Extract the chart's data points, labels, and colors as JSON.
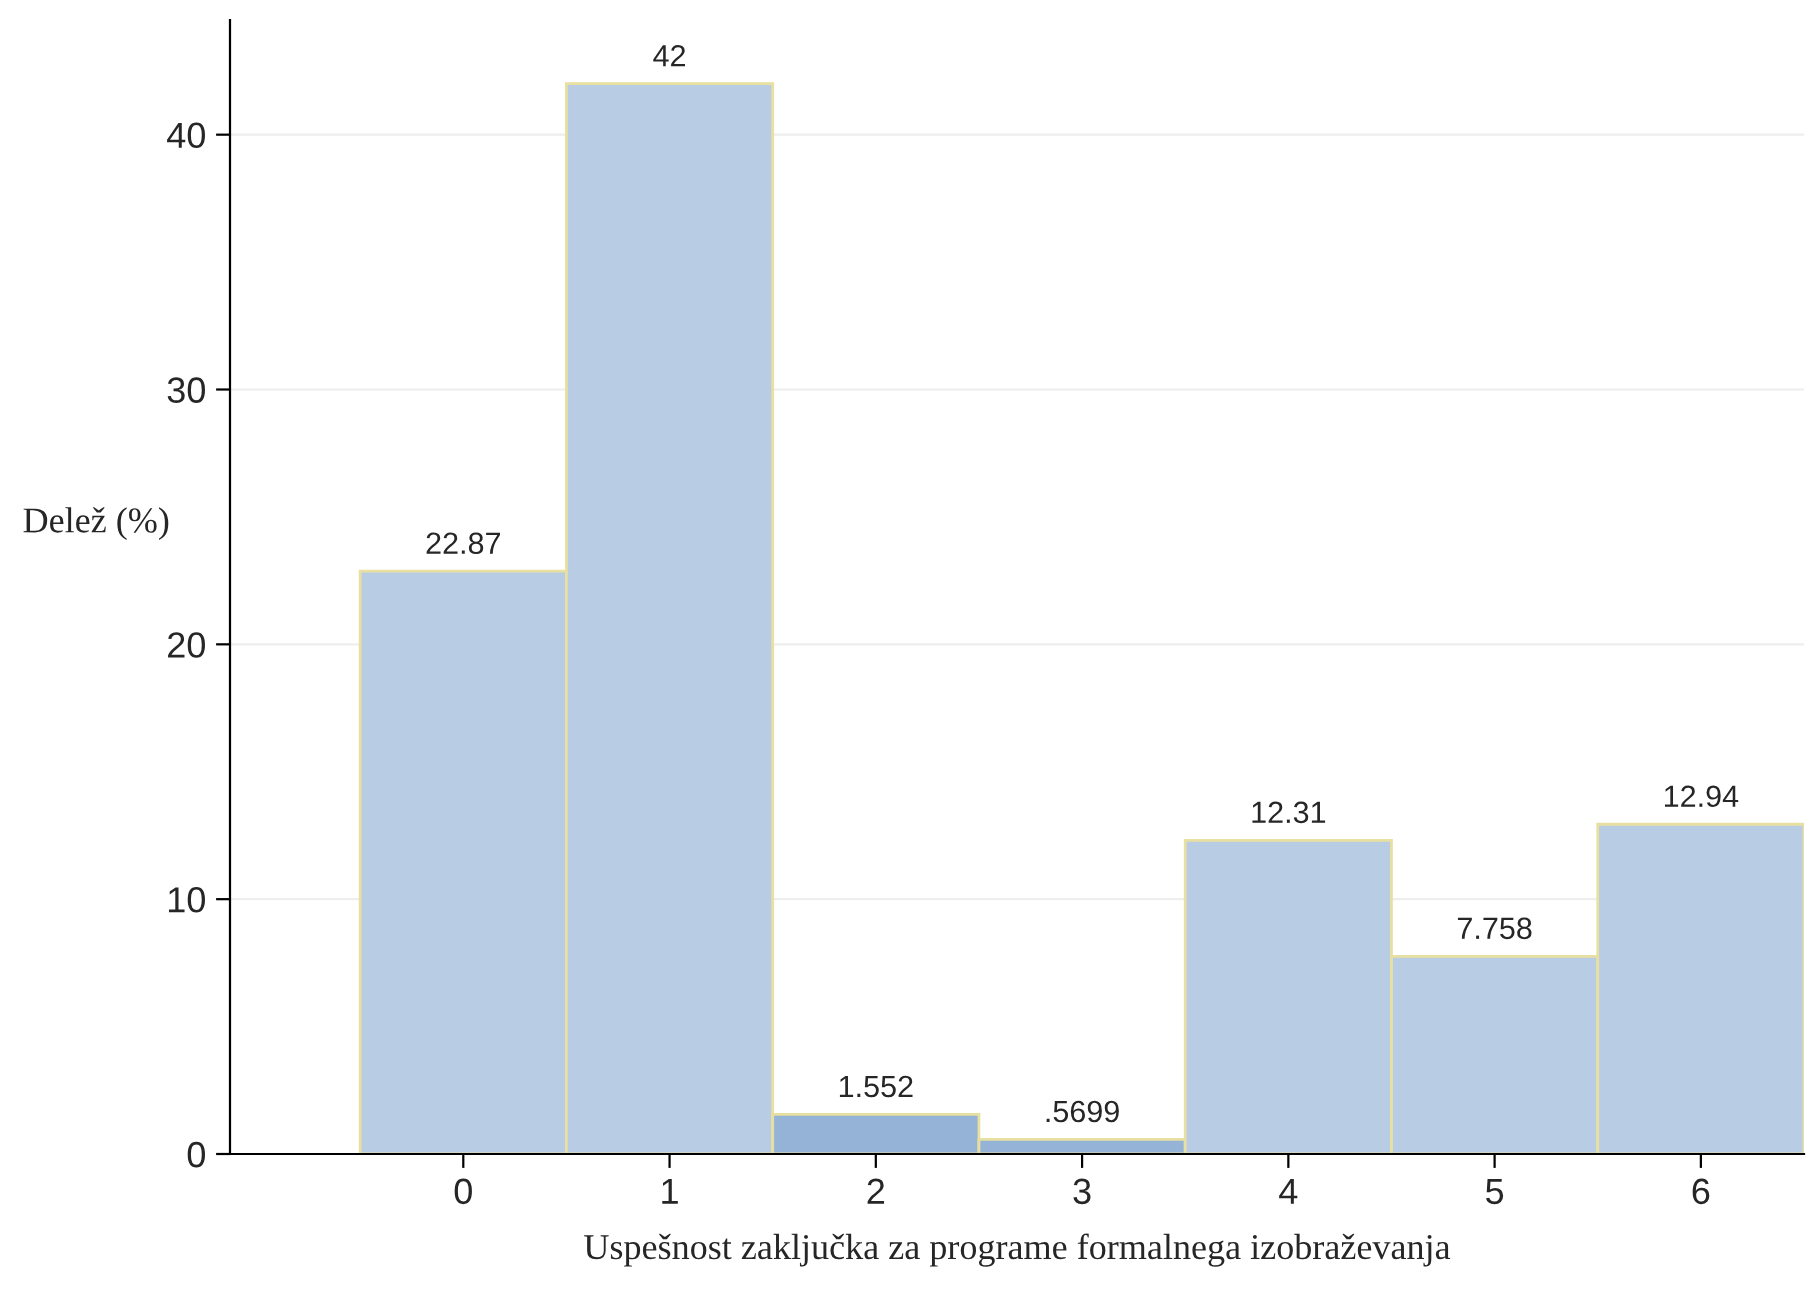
{
  "chart_data": {
    "type": "bar",
    "xlabel": "Uspešnost zaključka za programe formalnega izobraževanja",
    "ylabel": "Delež (%)",
    "categories": [
      "0",
      "1",
      "2",
      "3",
      "4",
      "5",
      "6"
    ],
    "values": [
      22.87,
      42,
      1.552,
      0.5699,
      12.31,
      7.758,
      12.94
    ],
    "value_labels": [
      "22.87",
      "42",
      "1.552",
      ".5699",
      "12.31",
      "7.758",
      "12.94"
    ],
    "colors": [
      "#b8cce4",
      "#b8cce4",
      "#95b3d7",
      "#95b3d7",
      "#b8cce4",
      "#b8cce4",
      "#b8cce4"
    ],
    "ylim": [
      0,
      44.5
    ],
    "yticks": [
      0,
      10,
      20,
      30,
      40
    ],
    "grid": "y"
  }
}
